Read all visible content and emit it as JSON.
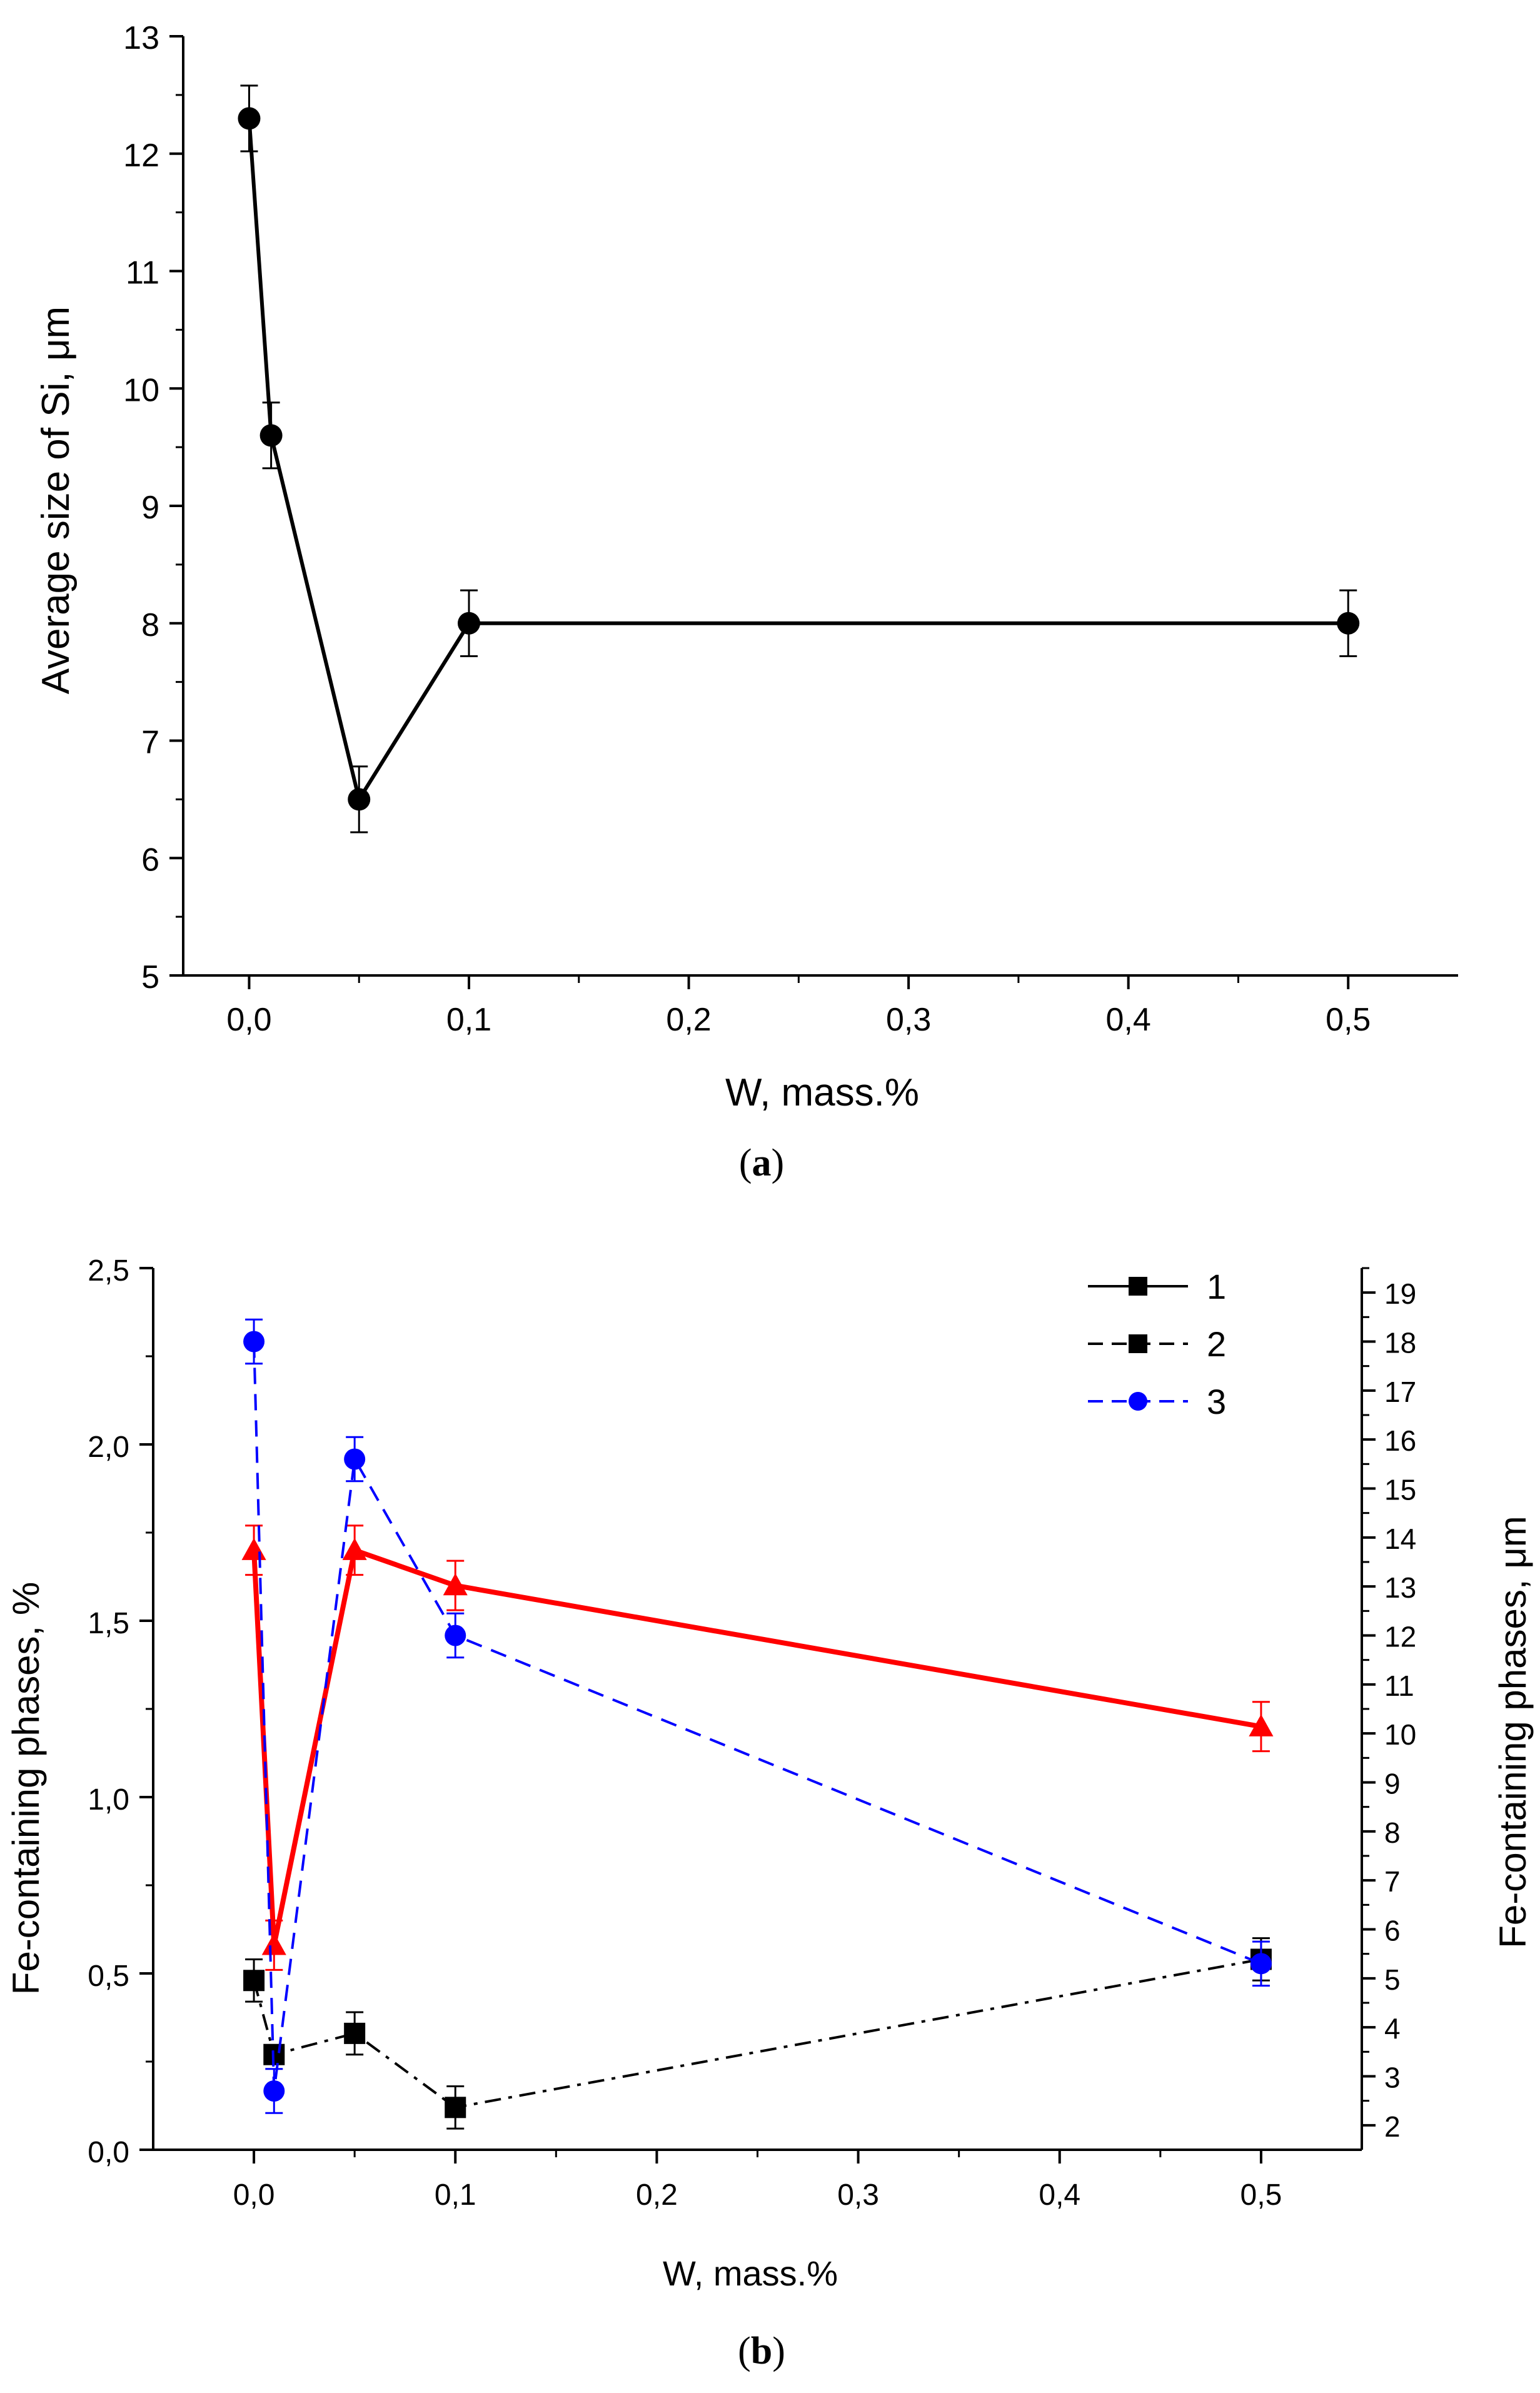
{
  "chart_data": [
    {
      "panel": "a",
      "type": "line",
      "caption": "(a)",
      "caption_letter": "a",
      "xlabel": "W, mass.%",
      "ylabel": "Average size of Si, μm",
      "xlim": [
        -0.03,
        0.55
      ],
      "ylim": [
        5,
        13
      ],
      "xticks": [
        0.0,
        0.1,
        0.2,
        0.3,
        0.4,
        0.5
      ],
      "xtick_labels": [
        "0,0",
        "0,1",
        "0,2",
        "0,3",
        "0,4",
        "0,5"
      ],
      "yticks": [
        5,
        6,
        7,
        8,
        9,
        10,
        11,
        12,
        13
      ],
      "ytick_labels": [
        "5",
        "6",
        "7",
        "8",
        "9",
        "10",
        "11",
        "12",
        "13"
      ],
      "grid": false,
      "series": [
        {
          "name": "Average size of Si",
          "color": "#000000",
          "marker": "circle",
          "x": [
            0.0,
            0.01,
            0.05,
            0.1,
            0.5
          ],
          "y": [
            12.3,
            9.6,
            6.5,
            8.0,
            8.0
          ],
          "err": [
            0.28,
            0.28,
            0.28,
            0.28,
            0.28
          ]
        }
      ]
    },
    {
      "panel": "b",
      "type": "line",
      "caption": "(b)",
      "caption_letter": "b",
      "xlabel": "W, mass.%",
      "ylabel": "Fe-containing phases, %",
      "ylabel_right": "Fe-containing phases, μm",
      "xlim": [
        -0.05,
        0.55
      ],
      "ylim": [
        0.0,
        2.5
      ],
      "ylim_right": [
        1.5,
        19.5
      ],
      "xticks": [
        0.0,
        0.1,
        0.2,
        0.3,
        0.4,
        0.5
      ],
      "xtick_labels": [
        "0,0",
        "0,1",
        "0,2",
        "0,3",
        "0,4",
        "0,5"
      ],
      "yticks": [
        0.0,
        0.5,
        1.0,
        1.5,
        2.0,
        2.5
      ],
      "ytick_labels": [
        "0,0",
        "0,5",
        "1,0",
        "1,5",
        "2,0",
        "2,5"
      ],
      "yticks_right": [
        2,
        3,
        4,
        5,
        6,
        7,
        8,
        9,
        10,
        11,
        12,
        13,
        14,
        15,
        16,
        17,
        18,
        19
      ],
      "ytick_labels_right": [
        "2",
        "3",
        "4",
        "5",
        "6",
        "7",
        "8",
        "9",
        "10",
        "11",
        "12",
        "13",
        "14",
        "15",
        "16",
        "17",
        "18",
        "19"
      ],
      "grid": false,
      "legend": {
        "placement": "top-right",
        "entries": [
          {
            "label": "1",
            "color": "#000000",
            "marker": "square",
            "style": "solid"
          },
          {
            "label": "2",
            "color": "#000000",
            "marker": "square",
            "style": "dashed"
          },
          {
            "label": "3",
            "color": "#0000ff",
            "marker": "circle",
            "style": "dashed"
          }
        ]
      },
      "series": [
        {
          "name": "Fe-containing phases, % (black squares)",
          "color": "#000000",
          "marker": "square",
          "style": "dashdot",
          "axis": "left",
          "x": [
            0.0,
            0.01,
            0.05,
            0.1,
            0.5
          ],
          "y": [
            0.48,
            0.27,
            0.33,
            0.12,
            0.54
          ],
          "err": [
            0.06,
            0.0,
            0.06,
            0.06,
            0.06
          ]
        },
        {
          "name": "Fe-containing phases (red triangles)",
          "color": "#ff0000",
          "marker": "triangle",
          "style": "solid",
          "axis": "left",
          "x": [
            0.0,
            0.01,
            0.05,
            0.1,
            0.5
          ],
          "y": [
            1.7,
            0.58,
            1.7,
            1.6,
            1.2
          ],
          "err": [
            0.07,
            0.07,
            0.07,
            0.07,
            0.07
          ]
        },
        {
          "name": "Fe-containing phases, μm (blue circles)",
          "color": "#0000ff",
          "marker": "circle",
          "style": "dashed",
          "axis": "right",
          "x": [
            0.0,
            0.01,
            0.05,
            0.1,
            0.5
          ],
          "y": [
            18.0,
            2.7,
            15.6,
            12.0,
            5.3
          ],
          "err": [
            0.45,
            0.45,
            0.45,
            0.45,
            0.45
          ]
        }
      ]
    }
  ]
}
